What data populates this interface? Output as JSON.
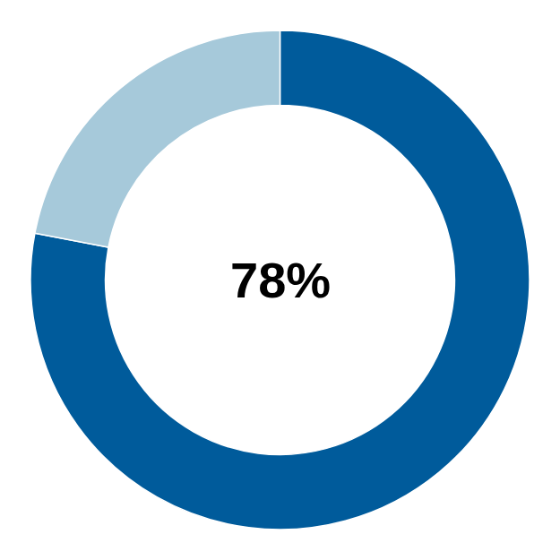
{
  "chart_data": {
    "type": "pie",
    "values": [
      78,
      22
    ],
    "colors": [
      "#005b9b",
      "#a6c9da"
    ],
    "annotations": [
      {
        "text": "78%"
      }
    ]
  }
}
